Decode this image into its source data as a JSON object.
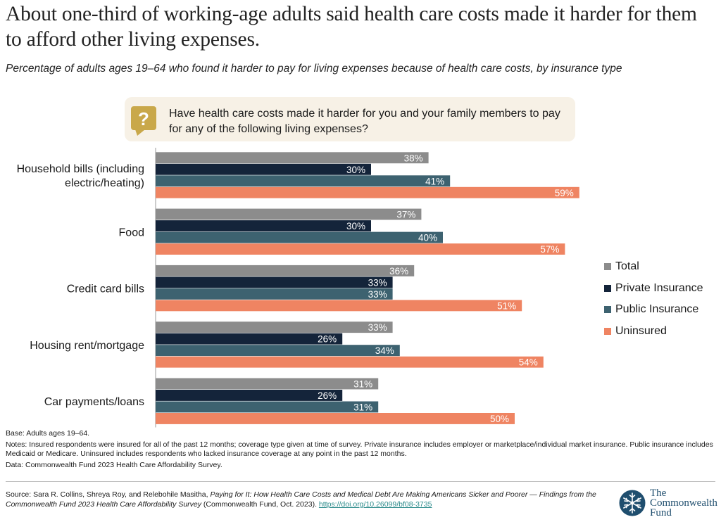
{
  "header": {
    "title": "About one-third of working-age adults said health care costs made it harder for them to afford other living expenses.",
    "subtitle": "Percentage of adults ages 19–64 who found it harder to pay for living expenses because of health care costs, by insurance type"
  },
  "question": {
    "icon": "question-mark-icon",
    "text": "Have health care costs made it harder for you and your family members to pay for any of the following living expenses?"
  },
  "colors": {
    "total": "#8c8c8c",
    "private": "#14243a",
    "public": "#3d6270",
    "uninsured": "#ef8462",
    "icon_bg": "#c9a84a",
    "question_bg": "#f7f1e6"
  },
  "chart_data": {
    "type": "bar",
    "orientation": "horizontal",
    "categories": [
      "Household bills (including electric/heating)",
      "Food",
      "Credit card bills",
      "Housing rent/mortgage",
      "Car payments/loans"
    ],
    "series": [
      {
        "name": "Total",
        "values": [
          38,
          37,
          36,
          33,
          31
        ]
      },
      {
        "name": "Private Insurance",
        "values": [
          30,
          30,
          33,
          26,
          26
        ]
      },
      {
        "name": "Public Insurance",
        "values": [
          41,
          40,
          33,
          34,
          31
        ]
      },
      {
        "name": "Uninsured",
        "values": [
          59,
          57,
          51,
          54,
          50
        ]
      }
    ],
    "value_suffix": "%",
    "xlim": [
      0,
      100
    ],
    "legend_position": "right",
    "grid": false
  },
  "notes": {
    "base": "Base: Adults ages 19–64.",
    "notes": "Notes: Insured respondents were insured for all of the past 12 months; coverage type given at time of survey. Private insurance includes employer or marketplace/individual market insurance. Public insurance includes Medicaid or Medicare. Uninsured includes respondents who lacked insurance coverage at any point in the past 12 months.",
    "data": "Data: Commonwealth Fund 2023 Health Care Affordability Survey."
  },
  "source": {
    "prefix": "Source: Sara R. Collins, Shreya Roy, and Relebohile Masitha, ",
    "title": "Paying for It: How Health Care Costs and Medical Debt Are Making Americans Sicker and Poorer — Findings from the Commonwealth Fund 2023 Health Care Affordability Survey",
    "suffix": " (Commonwealth Fund, Oct. 2023). ",
    "link": "https://doi.org/10.26099/bf08-3735"
  },
  "brand": {
    "logo_icon": "snowflake-emblem-icon",
    "line1": "The",
    "line2": "Commonwealth",
    "line3": "Fund"
  }
}
